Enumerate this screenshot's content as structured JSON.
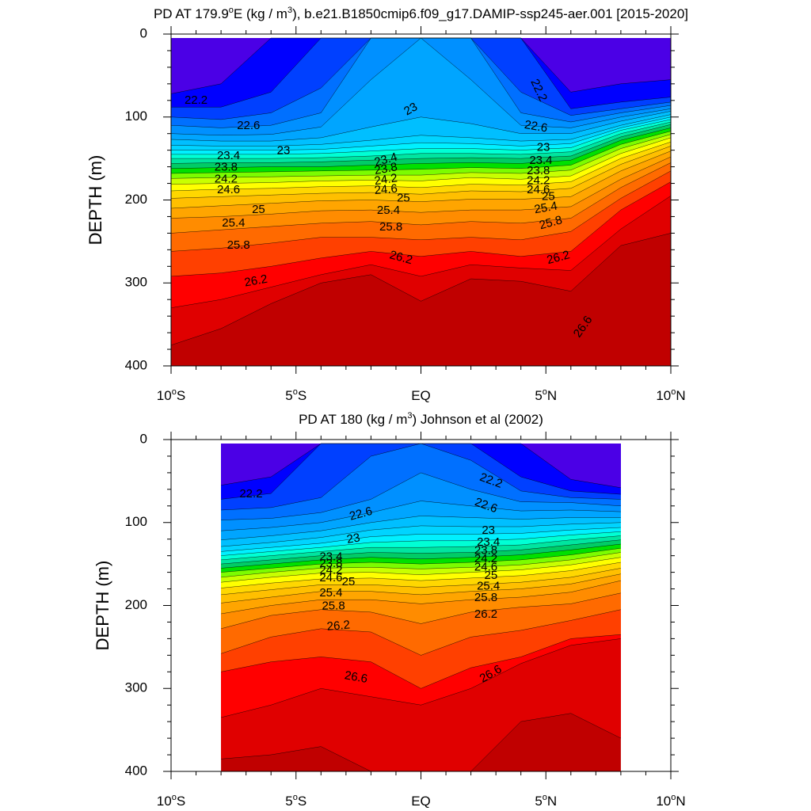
{
  "colors": {
    "palette": [
      "#c00000",
      "#e00000",
      "#ff0000",
      "#ff4000",
      "#ff6a00",
      "#ff8c00",
      "#ffa500",
      "#ffbf00",
      "#ffd700",
      "#ffff00",
      "#c8ff00",
      "#7cfc00",
      "#00e000",
      "#00cc66",
      "#00e5a0",
      "#00ffd5",
      "#00f0ff",
      "#00d4ff",
      "#00bfff",
      "#00a5ff",
      "#0090ff",
      "#0070ff",
      "#0040ff",
      "#0000ff",
      "#4b00e6",
      "#7a00e0",
      "#a000e0",
      "#c800e0",
      "#ff00ff"
    ]
  },
  "chart_data": [
    {
      "type": "contour",
      "title": "PD AT 179.9°E (kg / m³), b.e21.B1850cmip6.f09_g17.DAMIP-ssp245-aer.001 [2015-2020]",
      "title_parts": {
        "pre": "PD AT 179.9",
        "deg": "o",
        "mid": "E (kg / m",
        "sup": "3",
        "post": "), b.e21.B1850cmip6.f09_g17.DAMIP-ssp245-aer.001 [2015-2020]"
      },
      "ylabel": "DEPTH (m)",
      "xlim": [
        -10,
        10
      ],
      "ylim": [
        400,
        0
      ],
      "data_xrange": [
        -10,
        10
      ],
      "x_ticks": [
        {
          "value": -10,
          "num": "10",
          "deg": "o",
          "hemi": "S"
        },
        {
          "value": -5,
          "num": "5",
          "deg": "o",
          "hemi": "S"
        },
        {
          "value": 0,
          "num": "EQ",
          "deg": "",
          "hemi": ""
        },
        {
          "value": 5,
          "num": "5",
          "deg": "o",
          "hemi": "N"
        },
        {
          "value": 10,
          "num": "10",
          "deg": "o",
          "hemi": "N"
        }
      ],
      "y_ticks": [
        "0",
        "100",
        "200",
        "300",
        "400"
      ],
      "y_tick_values": [
        0,
        100,
        200,
        300,
        400
      ],
      "contour_levels": [
        26.6,
        26.4,
        26.2,
        26.0,
        25.8,
        25.6,
        25.4,
        25.2,
        25.0,
        24.8,
        24.6,
        24.4,
        24.2,
        24.0,
        23.8,
        23.6,
        23.4,
        23.2,
        23.0,
        22.8,
        22.6,
        22.4,
        22.2,
        22.0
      ],
      "contour_depths": {
        "x": [
          -10,
          -8,
          -6,
          -4,
          -2,
          0,
          2,
          4,
          6,
          8,
          10
        ],
        "rows": [
          [
            375,
            355,
            325,
            300,
            290,
            322,
            295,
            298,
            310,
            255,
            240
          ],
          [
            330,
            320,
            305,
            290,
            278,
            292,
            278,
            282,
            285,
            235,
            195
          ],
          [
            292,
            288,
            280,
            270,
            262,
            268,
            262,
            268,
            262,
            212,
            178
          ],
          [
            262,
            258,
            252,
            245,
            245,
            248,
            245,
            248,
            238,
            198,
            165
          ],
          [
            240,
            236,
            232,
            228,
            226,
            230,
            226,
            228,
            222,
            185,
            155
          ],
          [
            222,
            220,
            217,
            213,
            212,
            215,
            212,
            212,
            208,
            175,
            148
          ],
          [
            210,
            207,
            204,
            201,
            200,
            202,
            199,
            199,
            196,
            165,
            141
          ],
          [
            198,
            196,
            194,
            192,
            191,
            193,
            189,
            190,
            186,
            157,
            135
          ],
          [
            189,
            187,
            186,
            184,
            183,
            185,
            181,
            182,
            178,
            150,
            130
          ],
          [
            181,
            180,
            179,
            177,
            176,
            177,
            173,
            175,
            171,
            144,
            125
          ],
          [
            174,
            173,
            172,
            171,
            170,
            170,
            167,
            168,
            164,
            138,
            121
          ],
          [
            168,
            167,
            166,
            165,
            164,
            163,
            161,
            162,
            158,
            133,
            117
          ],
          [
            162,
            161,
            160,
            160,
            158,
            156,
            155,
            156,
            152,
            128,
            113
          ],
          [
            156,
            155,
            155,
            154,
            152,
            150,
            149,
            150,
            147,
            124,
            109
          ],
          [
            150,
            150,
            150,
            149,
            147,
            144,
            144,
            145,
            142,
            120,
            106
          ],
          [
            145,
            145,
            145,
            144,
            141,
            138,
            138,
            140,
            137,
            116,
            103
          ],
          [
            140,
            140,
            140,
            139,
            135,
            131,
            132,
            135,
            132,
            113,
            100
          ],
          [
            134,
            135,
            135,
            133,
            128,
            122,
            125,
            129,
            127,
            110,
            97
          ],
          [
            127,
            129,
            129,
            125,
            112,
            100,
            108,
            120,
            120,
            105,
            93
          ],
          [
            120,
            122,
            121,
            112,
            55,
            0,
            55,
            110,
            113,
            100,
            90
          ],
          [
            110,
            113,
            110,
            95,
            0,
            0,
            0,
            95,
            106,
            95,
            86
          ],
          [
            100,
            103,
            95,
            65,
            0,
            0,
            0,
            70,
            98,
            90,
            82
          ],
          [
            88,
            88,
            70,
            0,
            0,
            0,
            0,
            0,
            90,
            82,
            76
          ],
          [
            72,
            60,
            0,
            0,
            0,
            0,
            0,
            0,
            70,
            60,
            55
          ]
        ]
      },
      "contour_labels": [
        {
          "text": "22.2",
          "x": -9.0,
          "y": 80,
          "rot": 0
        },
        {
          "text": "22.6",
          "x": -6.9,
          "y": 111,
          "rot": 0
        },
        {
          "text": "23",
          "x": -5.5,
          "y": 141,
          "rot": 0
        },
        {
          "text": "23.4",
          "x": -7.7,
          "y": 147,
          "rot": 0
        },
        {
          "text": "23.8",
          "x": -7.8,
          "y": 161,
          "rot": 0
        },
        {
          "text": "24.2",
          "x": -7.8,
          "y": 175,
          "rot": 0
        },
        {
          "text": "24.6",
          "x": -7.7,
          "y": 188,
          "rot": 0
        },
        {
          "text": "25",
          "x": -6.5,
          "y": 212,
          "rot": 0
        },
        {
          "text": "25.4",
          "x": -7.5,
          "y": 228,
          "rot": 0
        },
        {
          "text": "25.8",
          "x": -7.3,
          "y": 255,
          "rot": 0
        },
        {
          "text": "26.2",
          "x": -6.6,
          "y": 298,
          "rot": -10
        },
        {
          "text": "23",
          "x": -0.4,
          "y": 91,
          "rot": -30
        },
        {
          "text": "23.4",
          "x": -1.4,
          "y": 152,
          "rot": -15
        },
        {
          "text": "23.8",
          "x": -1.4,
          "y": 163,
          "rot": -10
        },
        {
          "text": "24.2",
          "x": -1.4,
          "y": 176,
          "rot": -8
        },
        {
          "text": "24.6",
          "x": -1.4,
          "y": 188,
          "rot": -5
        },
        {
          "text": "25",
          "x": -0.7,
          "y": 198,
          "rot": 0
        },
        {
          "text": "25.4",
          "x": -1.3,
          "y": 213,
          "rot": 0
        },
        {
          "text": "25.8",
          "x": -1.2,
          "y": 233,
          "rot": 0
        },
        {
          "text": "26.2",
          "x": -0.8,
          "y": 270,
          "rot": 15
        },
        {
          "text": "22.2",
          "x": 4.7,
          "y": 68,
          "rot": 65
        },
        {
          "text": "22.6",
          "x": 4.6,
          "y": 112,
          "rot": 10
        },
        {
          "text": "23",
          "x": 4.9,
          "y": 137,
          "rot": 0
        },
        {
          "text": "23.4",
          "x": 4.8,
          "y": 153,
          "rot": 0
        },
        {
          "text": "23.8",
          "x": 4.7,
          "y": 165,
          "rot": 0
        },
        {
          "text": "24.2",
          "x": 4.7,
          "y": 177,
          "rot": 0
        },
        {
          "text": "24.6",
          "x": 4.7,
          "y": 188,
          "rot": 0
        },
        {
          "text": "25",
          "x": 5.1,
          "y": 196,
          "rot": 0
        },
        {
          "text": "25.4",
          "x": 5.0,
          "y": 210,
          "rot": -10
        },
        {
          "text": "25.8",
          "x": 5.2,
          "y": 228,
          "rot": -15
        },
        {
          "text": "26.2",
          "x": 5.5,
          "y": 270,
          "rot": -15
        },
        {
          "text": "26.6",
          "x": 6.5,
          "y": 353,
          "rot": -55
        }
      ]
    },
    {
      "type": "contour",
      "title": "PD AT 180 (kg / m³) Johnson et al (2002)",
      "title_parts": {
        "pre": "PD AT 180 (kg / m",
        "deg": "",
        "mid": "",
        "sup": "3",
        "post": ") Johnson et al (2002)"
      },
      "ylabel": "DEPTH (m)",
      "xlim": [
        -10,
        10
      ],
      "ylim": [
        400,
        0
      ],
      "data_xrange": [
        -8,
        8
      ],
      "x_ticks": [
        {
          "value": -10,
          "num": "10",
          "deg": "o",
          "hemi": "S"
        },
        {
          "value": -5,
          "num": "5",
          "deg": "o",
          "hemi": "S"
        },
        {
          "value": 0,
          "num": "EQ",
          "deg": "",
          "hemi": ""
        },
        {
          "value": 5,
          "num": "5",
          "deg": "o",
          "hemi": "N"
        },
        {
          "value": 10,
          "num": "10",
          "deg": "o",
          "hemi": "N"
        }
      ],
      "y_ticks": [
        "0",
        "100",
        "200",
        "300",
        "400"
      ],
      "y_tick_values": [
        0,
        100,
        200,
        300,
        400
      ],
      "contour_levels": [
        26.6,
        26.4,
        26.2,
        26.0,
        25.8,
        25.6,
        25.4,
        25.2,
        25.0,
        24.8,
        24.6,
        24.4,
        24.2,
        24.0,
        23.8,
        23.6,
        23.4,
        23.2,
        23.0,
        22.8,
        22.6,
        22.4,
        22.2,
        22.0
      ],
      "contour_depths": {
        "x": [
          -8,
          -6,
          -4,
          -2,
          0,
          2,
          4,
          6,
          8
        ],
        "rows": [
          [
            385,
            380,
            370,
            400,
            400,
            400,
            340,
            330,
            360
          ],
          [
            335,
            320,
            300,
            310,
            320,
            300,
            270,
            248,
            240
          ],
          [
            280,
            268,
            262,
            268,
            300,
            275,
            262,
            240,
            235
          ],
          [
            258,
            238,
            228,
            232,
            260,
            238,
            230,
            218,
            205
          ],
          [
            228,
            212,
            205,
            208,
            222,
            208,
            202,
            198,
            185
          ],
          [
            210,
            200,
            193,
            193,
            198,
            193,
            190,
            184,
            170
          ],
          [
            197,
            190,
            183,
            183,
            187,
            183,
            180,
            174,
            162
          ],
          [
            187,
            181,
            175,
            175,
            178,
            175,
            172,
            166,
            155
          ],
          [
            179,
            173,
            168,
            167,
            170,
            167,
            164,
            158,
            148
          ],
          [
            172,
            166,
            161,
            160,
            163,
            160,
            157,
            151,
            142
          ],
          [
            166,
            160,
            155,
            154,
            156,
            154,
            151,
            145,
            136
          ],
          [
            160,
            155,
            150,
            148,
            150,
            148,
            145,
            139,
            131
          ],
          [
            155,
            150,
            145,
            142,
            144,
            142,
            139,
            133,
            126
          ],
          [
            150,
            145,
            140,
            136,
            137,
            136,
            133,
            127,
            121
          ],
          [
            145,
            140,
            135,
            130,
            130,
            129,
            127,
            121,
            116
          ],
          [
            140,
            135,
            130,
            124,
            122,
            122,
            120,
            115,
            111
          ],
          [
            135,
            130,
            125,
            117,
            114,
            114,
            113,
            109,
            106
          ],
          [
            129,
            124,
            118,
            109,
            104,
            105,
            105,
            102,
            100
          ],
          [
            121,
            116,
            110,
            100,
            92,
            94,
            96,
            94,
            94
          ],
          [
            110,
            106,
            100,
            88,
            74,
            80,
            86,
            85,
            87
          ],
          [
            97,
            95,
            88,
            72,
            40,
            60,
            75,
            76,
            80
          ],
          [
            85,
            82,
            70,
            20,
            0,
            25,
            62,
            70,
            72
          ],
          [
            72,
            65,
            0,
            0,
            0,
            0,
            45,
            62,
            66
          ],
          [
            55,
            45,
            0,
            0,
            0,
            0,
            0,
            48,
            58
          ]
        ]
      },
      "contour_labels": [
        {
          "text": "22.2",
          "x": -6.8,
          "y": 66,
          "rot": 0
        },
        {
          "text": "22.6",
          "x": -2.4,
          "y": 90,
          "rot": -15
        },
        {
          "text": "23",
          "x": -2.7,
          "y": 120,
          "rot": -10
        },
        {
          "text": "23.4",
          "x": -3.6,
          "y": 142,
          "rot": 0
        },
        {
          "text": "23.8",
          "x": -3.6,
          "y": 150,
          "rot": 0
        },
        {
          "text": "24.2",
          "x": -3.6,
          "y": 158,
          "rot": 0
        },
        {
          "text": "24.6",
          "x": -3.6,
          "y": 167,
          "rot": 0
        },
        {
          "text": "25",
          "x": -2.9,
          "y": 172,
          "rot": 0
        },
        {
          "text": "25.4",
          "x": -3.6,
          "y": 185,
          "rot": 0
        },
        {
          "text": "25.8",
          "x": -3.5,
          "y": 201,
          "rot": 0
        },
        {
          "text": "26.2",
          "x": -3.3,
          "y": 225,
          "rot": -5
        },
        {
          "text": "26.6",
          "x": -2.6,
          "y": 287,
          "rot": 10
        },
        {
          "text": "22.2",
          "x": 2.8,
          "y": 50,
          "rot": 20
        },
        {
          "text": "22.6",
          "x": 2.6,
          "y": 80,
          "rot": 20
        },
        {
          "text": "23",
          "x": 2.7,
          "y": 110,
          "rot": 0
        },
        {
          "text": "23.4",
          "x": 2.7,
          "y": 124,
          "rot": 0
        },
        {
          "text": "23.8",
          "x": 2.6,
          "y": 134,
          "rot": 0
        },
        {
          "text": "24.2",
          "x": 2.6,
          "y": 144,
          "rot": 0
        },
        {
          "text": "24.6",
          "x": 2.6,
          "y": 154,
          "rot": 0
        },
        {
          "text": "25",
          "x": 2.8,
          "y": 164,
          "rot": 0
        },
        {
          "text": "25.4",
          "x": 2.7,
          "y": 177,
          "rot": 0
        },
        {
          "text": "25.8",
          "x": 2.6,
          "y": 191,
          "rot": 0
        },
        {
          "text": "26.2",
          "x": 2.6,
          "y": 211,
          "rot": 0
        },
        {
          "text": "26.6",
          "x": 2.8,
          "y": 283,
          "rot": -30
        }
      ]
    }
  ]
}
